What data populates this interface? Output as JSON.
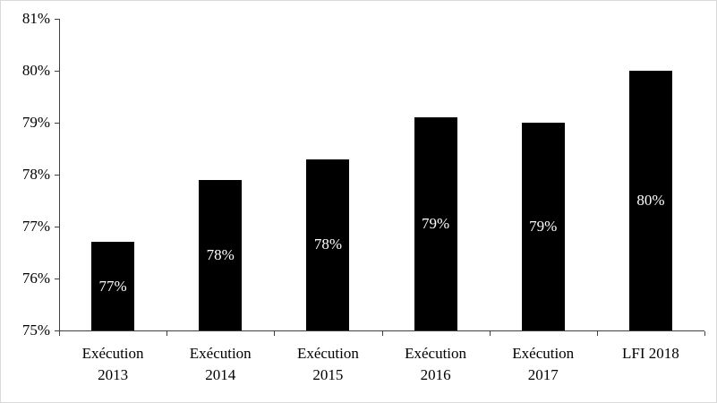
{
  "chart_data": {
    "type": "bar",
    "title": "",
    "xlabel": "",
    "ylabel": "",
    "categories": [
      "Exécution 2013",
      "Exécution 2014",
      "Exécution 2015",
      "Exécution 2016",
      "Exécution 2017",
      "LFI 2018"
    ],
    "category_lines": [
      [
        "Exécution",
        "2013"
      ],
      [
        "Exécution",
        "2014"
      ],
      [
        "Exécution",
        "2015"
      ],
      [
        "Exécution",
        "2016"
      ],
      [
        "Exécution",
        "2017"
      ],
      [
        "LFI 2018"
      ]
    ],
    "values": [
      76.7,
      77.9,
      78.3,
      79.1,
      79.0,
      80.0
    ],
    "bar_labels": [
      "77%",
      "78%",
      "78%",
      "79%",
      "79%",
      "80%"
    ],
    "ylim": [
      75,
      81
    ],
    "ytick_step": 1,
    "ytick_labels": [
      "75%",
      "76%",
      "77%",
      "78%",
      "79%",
      "80%",
      "81%"
    ],
    "bar_color": "#000000",
    "bar_label_color": "#ffffff",
    "axis_color": "#404040",
    "grid": "off",
    "legend": "none"
  }
}
